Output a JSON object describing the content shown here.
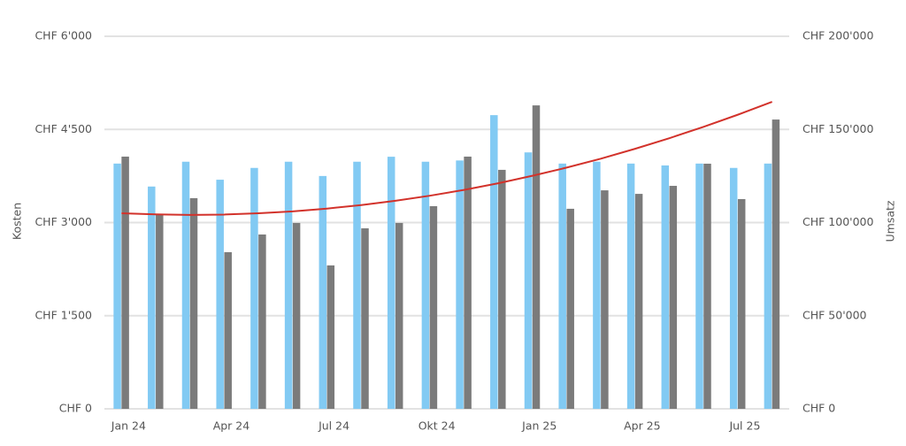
{
  "chart_data": {
    "type": "bar",
    "y_label": "Kosten",
    "y2_label": "Umsatz",
    "categories": [
      "Jan 24",
      null,
      null,
      "Apr 24",
      null,
      null,
      "Jul 24",
      null,
      null,
      "Okt 24",
      null,
      null,
      "Jan 25",
      null,
      null,
      "Apr 25",
      null,
      null,
      "Jul 25",
      null
    ],
    "series": [
      {
        "color": "#82caf3",
        "type": "bar",
        "axis": "y",
        "values": [
          3950,
          3580,
          3980,
          3690,
          3880,
          3980,
          3750,
          3980,
          4060,
          3980,
          4000,
          4730,
          4130,
          3950,
          3980,
          3950,
          3920,
          3950,
          3880,
          3950
        ]
      },
      {
        "color": "#7b7b7b",
        "type": "bar",
        "axis": "y2",
        "values": [
          135400,
          104500,
          113100,
          84100,
          93600,
          99800,
          77000,
          96900,
          99800,
          108800,
          135400,
          128300,
          162900,
          107400,
          117300,
          115400,
          119700,
          131600,
          112600,
          155300
        ]
      },
      {
        "color": "#d2322b",
        "type": "line",
        "axis": "y2",
        "values": [
          105000,
          104400,
          104100,
          104300,
          105000,
          106000,
          107500,
          109400,
          111700,
          114400,
          117500,
          121100,
          125100,
          129500,
          134300,
          139600,
          145300,
          151400,
          157900,
          164800
        ]
      }
    ],
    "ylim": [
      0,
      6000
    ],
    "yticks": [
      {
        "value": 0,
        "label": "CHF 0"
      },
      {
        "value": 1500,
        "label": "CHF 1'500"
      },
      {
        "value": 3000,
        "label": "CHF 3'000"
      },
      {
        "value": 4500,
        "label": "CHF 4'500"
      },
      {
        "value": 6000,
        "label": "CHF 6'000"
      }
    ],
    "y2lim": [
      0,
      200000
    ],
    "y2ticks": [
      {
        "value": 0,
        "label": "CHF 0"
      },
      {
        "value": 50000,
        "label": "CHF 50'000"
      },
      {
        "value": 100000,
        "label": "CHF 100'000"
      },
      {
        "value": 150000,
        "label": "CHF 150'000"
      },
      {
        "value": 200000,
        "label": "CHF 200'000"
      }
    ],
    "grid": true
  }
}
